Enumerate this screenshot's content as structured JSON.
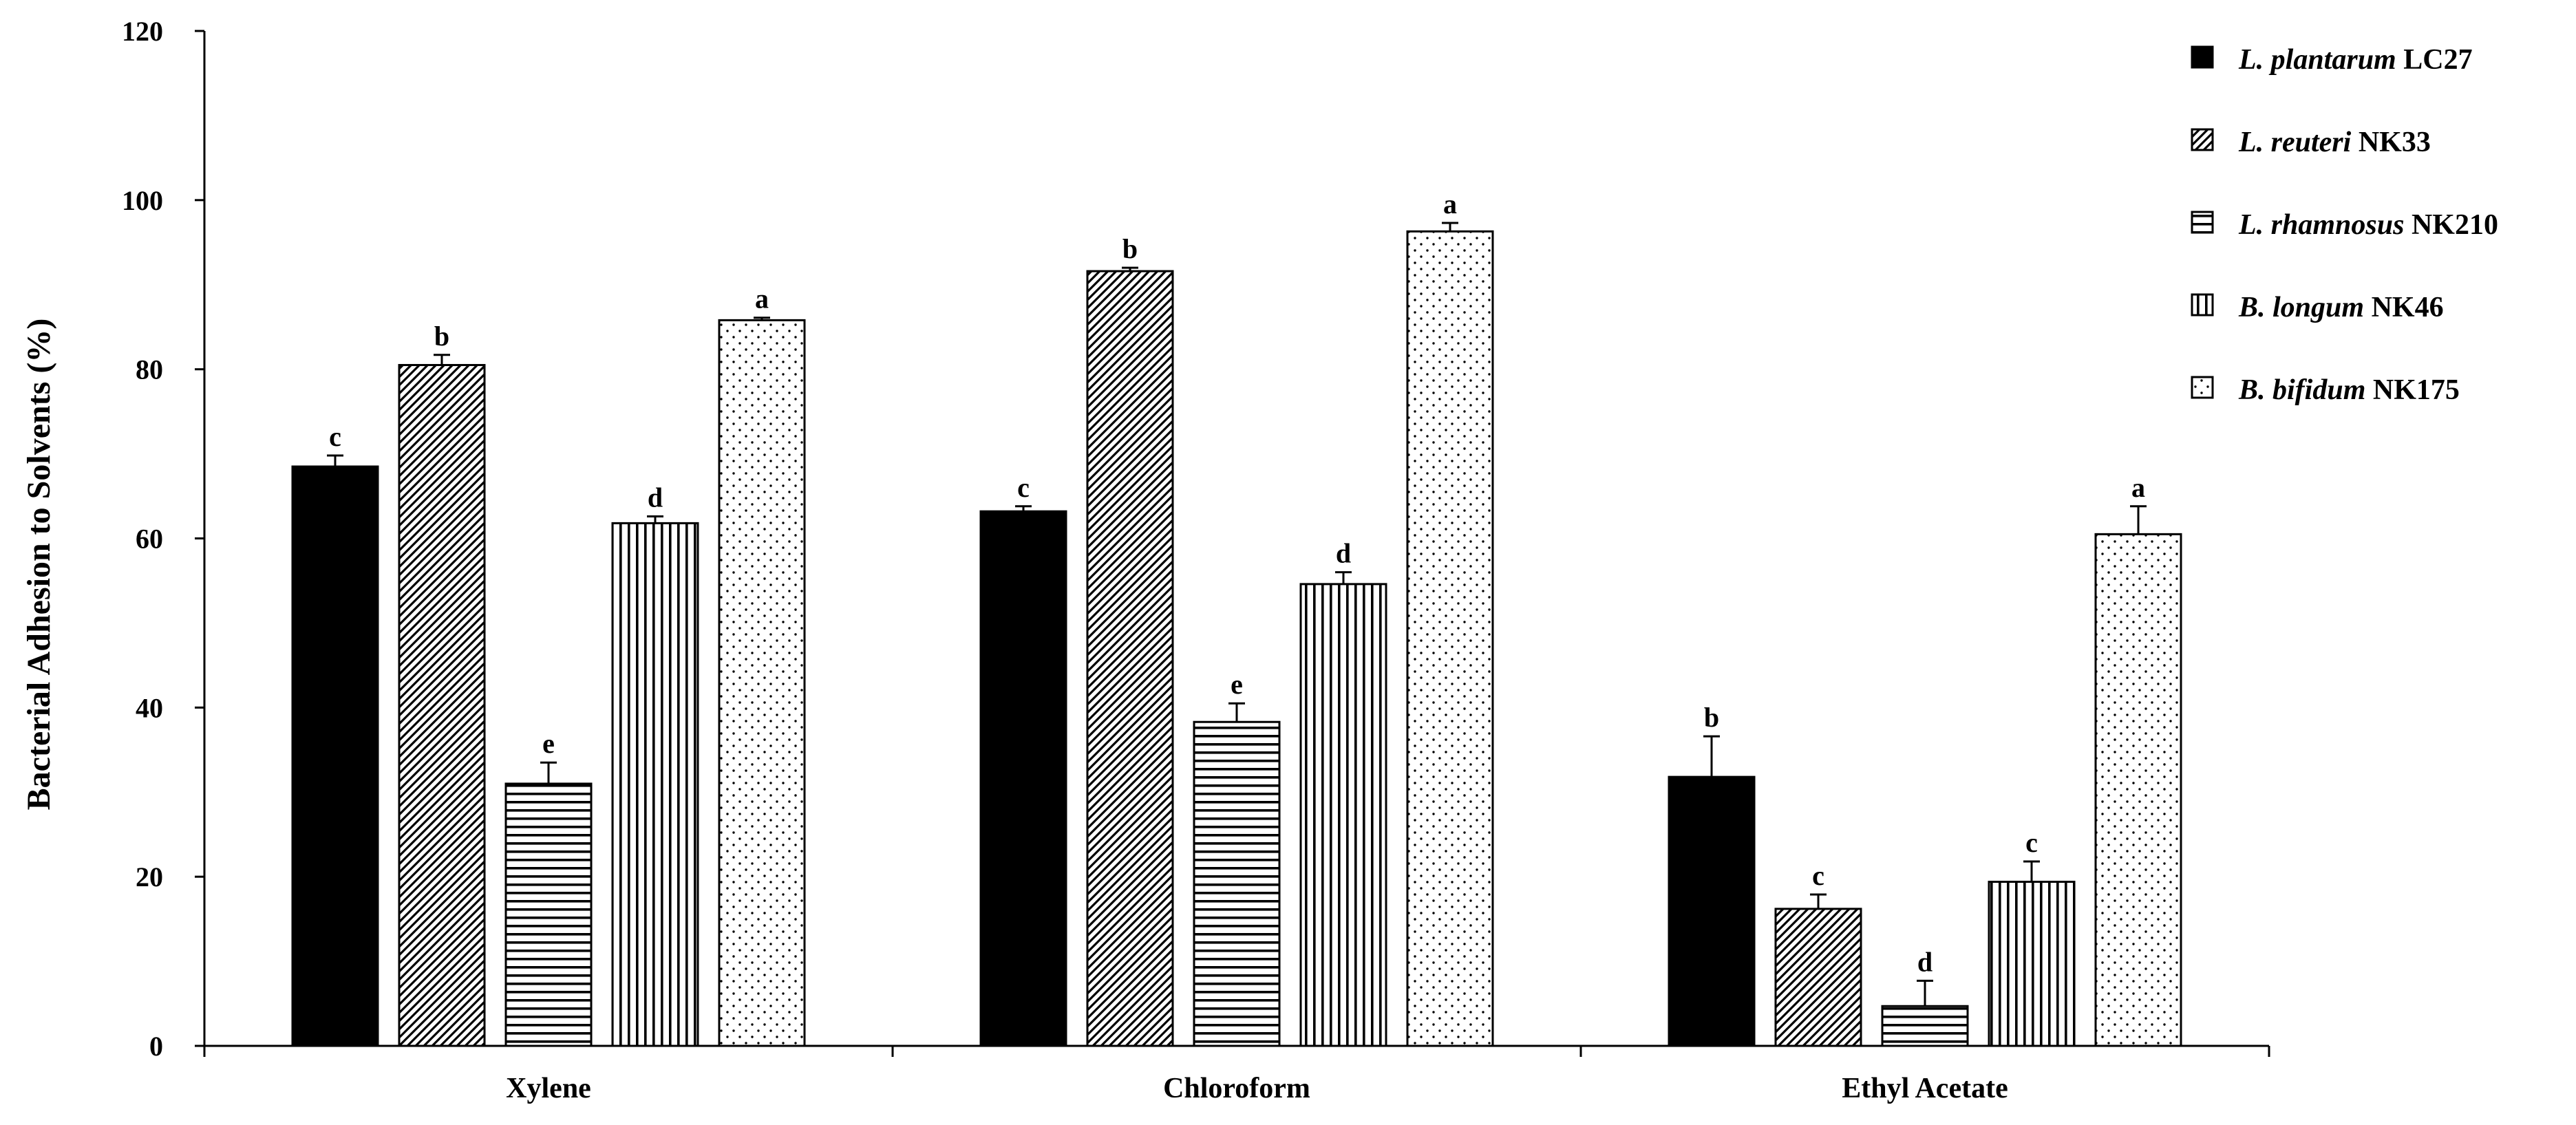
{
  "chart_data": {
    "type": "bar",
    "title": "",
    "xlabel": "",
    "ylabel": "Bacterial Adhesion to Solvents (%)",
    "ylim": [
      0,
      120
    ],
    "yticks": [
      0,
      20,
      40,
      60,
      80,
      100,
      120
    ],
    "categories": [
      "Xylene",
      "Chloroform",
      "Ethyl Acetate"
    ],
    "legend_position": "top-right",
    "series": [
      {
        "name_italic": "L. plantarum",
        "name_strain": "LC27",
        "pattern": "solid",
        "values": [
          68.5,
          63.2,
          31.8
        ],
        "errors": [
          1.3,
          0.6,
          4.8
        ],
        "letters": [
          "c",
          "c",
          "b"
        ]
      },
      {
        "name_italic": "L. reuteri",
        "name_strain": "NK33",
        "pattern": "diagonal",
        "values": [
          80.5,
          91.6,
          16.2
        ],
        "errors": [
          1.2,
          0.4,
          1.7
        ],
        "letters": [
          "b",
          "b",
          "c"
        ]
      },
      {
        "name_italic": "L. rhamnosus",
        "name_strain": "NK210",
        "pattern": "horizontal",
        "values": [
          31.0,
          38.3,
          4.7
        ],
        "errors": [
          2.5,
          2.2,
          3.0
        ],
        "letters": [
          "e",
          "e",
          "d"
        ]
      },
      {
        "name_italic": "B. longum",
        "name_strain": "NK46",
        "pattern": "vertical",
        "values": [
          61.8,
          54.6,
          19.4
        ],
        "errors": [
          0.8,
          1.4,
          2.4
        ],
        "letters": [
          "d",
          "d",
          "c"
        ]
      },
      {
        "name_italic": "B. bifidum",
        "name_strain": "NK175",
        "pattern": "dots",
        "values": [
          85.8,
          96.3,
          60.5
        ],
        "errors": [
          0.3,
          1.0,
          3.3
        ],
        "letters": [
          "a",
          "a",
          "a"
        ]
      }
    ]
  }
}
